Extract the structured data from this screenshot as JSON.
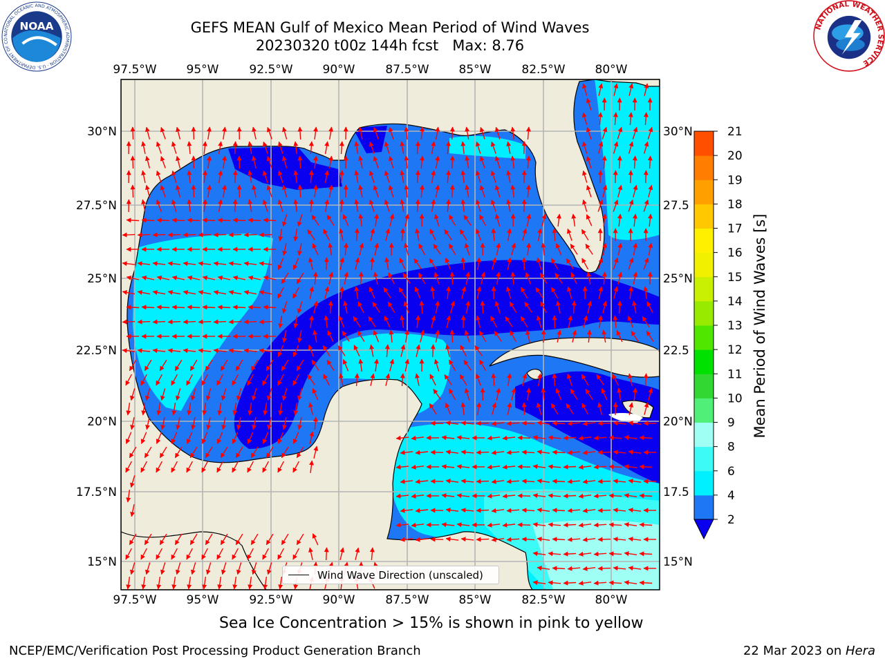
{
  "title": {
    "line1": "GEFS MEAN Gulf of Mexico Mean Period of Wind Waves",
    "line2": "20230320 t00z 144h fcst   Max: 8.76"
  },
  "map": {
    "lon_ticks": [
      "97.5°W",
      "95°W",
      "92.5°W",
      "90°W",
      "87.5°W",
      "85°W",
      "82.5°W",
      "80°W"
    ],
    "lat_ticks_left": [
      "30°N",
      "27.5°N",
      "25°N",
      "22.5°N",
      "20°N",
      "17.5°N",
      "15°N"
    ],
    "lat_ticks_right": [
      "30°N",
      "27.5",
      "25°N",
      "22.5",
      "20°N",
      "17.5",
      "15°N"
    ],
    "lon_range": [
      -98,
      -78.2
    ],
    "lat_range": [
      14,
      31.7
    ],
    "colors": {
      "land": "#efecdc",
      "ocean_2_4": "#1e78f5",
      "ocean_0_2": "#0a00f0",
      "ocean_4_6": "#00f0ff",
      "ocean_6_8": "#3cfaf5",
      "arrow": "#ff0000",
      "grid": "#b4b4b4"
    }
  },
  "colorbar": {
    "title": "Mean Period of Wind Waves [s]",
    "tick_labels": [
      "2",
      "4",
      "6",
      "8",
      "9",
      "10",
      "11",
      "12",
      "13",
      "14",
      "15",
      "16",
      "17",
      "18",
      "19",
      "20",
      "21"
    ],
    "colors": [
      "#0a00f0",
      "#1e78f5",
      "#00f0ff",
      "#3cfaf5",
      "#a0fff5",
      "#50f078",
      "#32d732",
      "#00e100",
      "#50e600",
      "#96eb00",
      "#c8f000",
      "#f0f000",
      "#fff000",
      "#ffc800",
      "#ffa000",
      "#ff7d00",
      "#ff5000",
      "#ff2800",
      "#ff0000"
    ]
  },
  "legend": {
    "label": "Wind Wave Direction (unscaled)"
  },
  "footnote": "Sea Ice Concentration > 15% is shown in pink to yellow",
  "credit_left": "NCEP/EMC/Verification Post Processing Product Generation Branch",
  "credit_right_date": "22 Mar 2023 on ",
  "credit_right_host": "Hera",
  "logos": {
    "noaa_text": "NOAA",
    "noaa_ring": "NATIONAL OCEANIC AND ATMOSPHERIC ADMINISTRATION · U.S. DEPARTMENT OF COMMERCE",
    "nws_ring": "NATIONAL WEATHER SERVICE"
  }
}
